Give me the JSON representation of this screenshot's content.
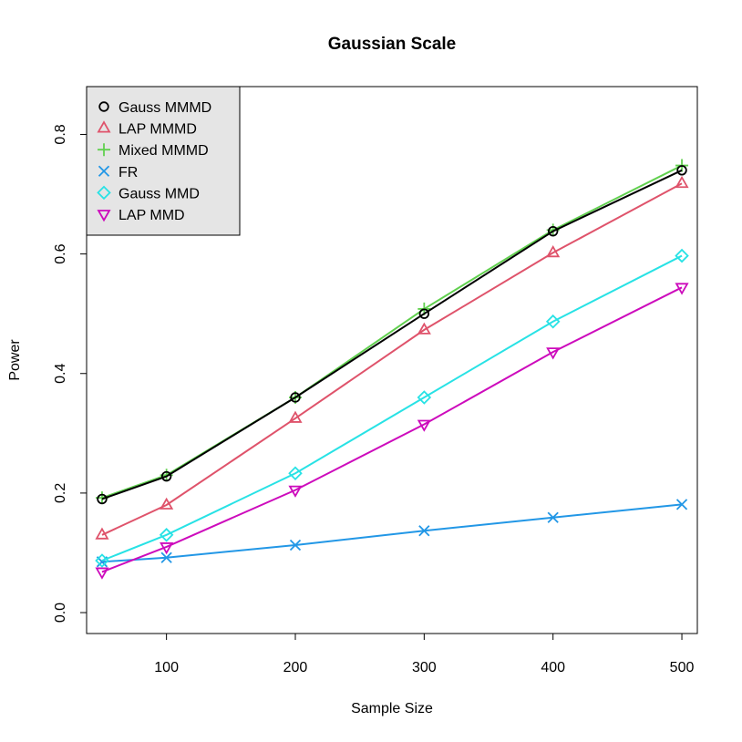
{
  "chart_data": {
    "type": "line",
    "title": "Gaussian Scale",
    "xlabel": "Sample Size",
    "ylabel": "Power",
    "xlim": [
      38,
      512
    ],
    "ylim": [
      -0.035,
      0.88
    ],
    "x_ticks": [
      100,
      200,
      300,
      400,
      500
    ],
    "y_ticks": [
      0.0,
      0.2,
      0.4,
      0.6,
      0.8
    ],
    "x_tick_labels": [
      "100",
      "200",
      "300",
      "400",
      "500"
    ],
    "y_tick_labels": [
      "0.0",
      "0.2",
      "0.4",
      "0.6",
      "0.8"
    ],
    "legend_position": "top-left",
    "grid": false,
    "x": [
      50,
      100,
      200,
      300,
      400,
      500
    ],
    "series": [
      {
        "name": "Gauss MMMD",
        "color": "#000000",
        "marker": "circle",
        "values": [
          0.19,
          0.228,
          0.36,
          0.5,
          0.638,
          0.74
        ]
      },
      {
        "name": "LAP MMMD",
        "color": "#df536b",
        "marker": "triangle-up",
        "values": [
          0.13,
          0.18,
          0.325,
          0.473,
          0.602,
          0.718
        ]
      },
      {
        "name": "Mixed MMMD",
        "color": "#61d04f",
        "marker": "plus",
        "values": [
          0.192,
          0.23,
          0.36,
          0.508,
          0.64,
          0.748
        ]
      },
      {
        "name": "FR",
        "color": "#2297e6",
        "marker": "cross",
        "values": [
          0.085,
          0.092,
          0.113,
          0.137,
          0.159,
          0.181
        ]
      },
      {
        "name": "Gauss MMD",
        "color": "#28e2e5",
        "marker": "diamond",
        "values": [
          0.087,
          0.13,
          0.233,
          0.36,
          0.487,
          0.597
        ]
      },
      {
        "name": "LAP MMD",
        "color": "#cd0bbc",
        "marker": "triangle-down",
        "values": [
          0.068,
          0.11,
          0.205,
          0.315,
          0.436,
          0.544
        ]
      }
    ]
  }
}
